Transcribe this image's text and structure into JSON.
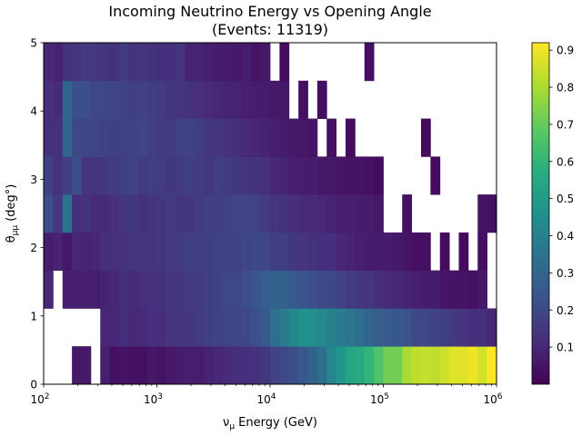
{
  "chart_data": {
    "type": "heatmap",
    "title": "Incoming Neutrino Energy vs Opening Angle",
    "subtitle": "(Events: 11319)",
    "xlabel_prefix": "ν",
    "xlabel_sub": "μ",
    "xlabel_suffix": " Energy (GeV)",
    "ylabel_main": "θ",
    "ylabel_sub": "μμ",
    "ylabel_suffix": " (deg°)",
    "x_scale": "log",
    "xlim": [
      100,
      1000000
    ],
    "ylim": [
      0,
      5
    ],
    "x_bins": 48,
    "y_bin_edges": [
      0,
      0.556,
      1.111,
      1.667,
      2.222,
      2.778,
      3.333,
      3.889,
      4.444,
      5
    ],
    "x_ticks": [
      {
        "value": 100,
        "base": "10",
        "exp": "2"
      },
      {
        "value": 1000,
        "base": "10",
        "exp": "3"
      },
      {
        "value": 10000,
        "base": "10",
        "exp": "4"
      },
      {
        "value": 100000,
        "base": "10",
        "exp": "5"
      },
      {
        "value": 1000000,
        "base": "10",
        "exp": "6"
      }
    ],
    "y_ticks": [
      "0",
      "1",
      "2",
      "3",
      "4",
      "5"
    ],
    "colorbar": {
      "colormap": "viridis",
      "range": [
        0.0,
        0.92
      ],
      "ticks": [
        "0.1",
        "0.2",
        "0.3",
        "0.4",
        "0.5",
        "0.6",
        "0.7",
        "0.8",
        "0.9"
      ]
    },
    "grid": false,
    "note": "rows are y-bins from bottom (0) to top (5 deg); null = empty bin",
    "z": [
      [
        null,
        null,
        null,
        0.06,
        0.06,
        null,
        0.08,
        0.04,
        0.05,
        0.04,
        0.04,
        0.06,
        0.05,
        0.06,
        0.07,
        0.08,
        0.07,
        0.09,
        0.1,
        0.11,
        0.12,
        0.12,
        0.13,
        0.15,
        0.18,
        0.2,
        0.22,
        0.25,
        0.29,
        0.33,
        0.42,
        0.48,
        0.54,
        0.56,
        0.6,
        0.66,
        0.72,
        0.72,
        0.8,
        0.83,
        0.84,
        0.83,
        0.85,
        0.88,
        0.88,
        0.9,
        0.86,
        0.93
      ],
      [
        null,
        null,
        null,
        null,
        null,
        null,
        0.1,
        0.1,
        0.12,
        0.1,
        0.11,
        0.12,
        0.12,
        0.14,
        0.14,
        0.15,
        0.16,
        0.17,
        0.18,
        0.19,
        0.19,
        0.2,
        0.22,
        0.26,
        0.33,
        0.38,
        0.42,
        0.46,
        0.45,
        0.42,
        0.4,
        0.38,
        0.36,
        0.33,
        0.3,
        0.27,
        0.26,
        0.25,
        0.23,
        0.2,
        0.2,
        0.18,
        0.17,
        0.15,
        0.14,
        0.12,
        0.12,
        0.1
      ],
      [
        0.1,
        null,
        0.08,
        0.08,
        0.08,
        0.07,
        0.09,
        0.1,
        0.12,
        0.11,
        0.12,
        0.13,
        0.13,
        0.14,
        0.15,
        0.16,
        0.16,
        0.17,
        0.18,
        0.2,
        0.2,
        0.22,
        0.24,
        0.27,
        0.28,
        0.28,
        0.26,
        0.24,
        0.22,
        0.21,
        0.2,
        0.18,
        0.16,
        0.15,
        0.14,
        0.12,
        0.11,
        0.1,
        0.09,
        0.08,
        0.07,
        0.07,
        0.05,
        0.05,
        0.05,
        0.04,
        0.06,
        null
      ],
      [
        0.07,
        0.09,
        0.06,
        0.1,
        0.09,
        0.1,
        0.12,
        0.12,
        0.13,
        0.14,
        0.15,
        0.14,
        0.15,
        0.16,
        0.16,
        0.17,
        0.17,
        0.17,
        0.18,
        0.18,
        0.18,
        0.19,
        0.2,
        0.19,
        0.17,
        0.17,
        0.15,
        0.14,
        0.13,
        0.12,
        0.12,
        0.1,
        0.09,
        0.08,
        0.07,
        0.07,
        0.07,
        0.06,
        0.05,
        0.04,
        0.04,
        null,
        0.03,
        null,
        0.03,
        null,
        0.04,
        null
      ],
      [
        0.22,
        0.15,
        0.34,
        0.12,
        0.13,
        0.11,
        0.11,
        0.12,
        0.14,
        0.15,
        0.13,
        0.14,
        0.15,
        0.16,
        0.15,
        0.14,
        0.16,
        0.17,
        0.17,
        0.18,
        0.19,
        0.19,
        0.18,
        0.16,
        0.14,
        0.13,
        0.12,
        0.11,
        0.11,
        0.1,
        0.09,
        0.08,
        0.08,
        0.07,
        0.07,
        0.06,
        null,
        null,
        0.04,
        null,
        null,
        null,
        null,
        null,
        null,
        null,
        0.05,
        0.04
      ],
      [
        0.18,
        0.13,
        0.17,
        0.22,
        0.14,
        0.14,
        0.15,
        0.16,
        0.17,
        0.18,
        0.16,
        0.17,
        0.16,
        0.15,
        0.16,
        0.17,
        0.16,
        0.15,
        0.17,
        0.16,
        0.15,
        0.14,
        0.13,
        0.12,
        0.1,
        0.09,
        0.08,
        0.07,
        0.07,
        0.06,
        0.06,
        0.05,
        0.05,
        0.05,
        0.04,
        0.03,
        null,
        null,
        null,
        null,
        null,
        0.03,
        null,
        null,
        null,
        null,
        null,
        null
      ],
      [
        0.12,
        0.13,
        0.3,
        0.2,
        0.19,
        0.19,
        0.18,
        0.17,
        0.18,
        0.18,
        0.19,
        0.17,
        0.16,
        0.16,
        0.18,
        0.18,
        0.17,
        0.15,
        0.14,
        0.13,
        0.12,
        0.11,
        0.1,
        0.09,
        0.08,
        0.07,
        0.06,
        0.06,
        0.05,
        null,
        0.04,
        null,
        0.03,
        null,
        null,
        null,
        null,
        null,
        null,
        null,
        0.03,
        null,
        null,
        null,
        null,
        null,
        null,
        null
      ],
      [
        0.12,
        0.11,
        0.3,
        0.22,
        0.22,
        0.2,
        0.2,
        0.19,
        0.18,
        0.17,
        0.18,
        0.17,
        0.16,
        0.15,
        0.14,
        0.13,
        0.12,
        0.11,
        0.1,
        0.09,
        0.09,
        0.08,
        0.07,
        0.07,
        0.06,
        0.06,
        null,
        0.04,
        null,
        0.04,
        null,
        null,
        null,
        null,
        null,
        null,
        null,
        null,
        null,
        null,
        null,
        null,
        null,
        null,
        null,
        null,
        null,
        null
      ],
      [
        0.1,
        0.09,
        0.13,
        0.14,
        0.16,
        0.15,
        0.14,
        0.13,
        0.16,
        0.13,
        0.14,
        0.13,
        0.12,
        0.12,
        0.14,
        0.09,
        0.09,
        0.08,
        0.07,
        0.07,
        0.06,
        0.07,
        0.05,
        0.06,
        null,
        0.03,
        null,
        null,
        null,
        null,
        null,
        null,
        null,
        null,
        0.04,
        null,
        null,
        null,
        null,
        null,
        null,
        null,
        null,
        null,
        null,
        null,
        null,
        null
      ]
    ]
  }
}
